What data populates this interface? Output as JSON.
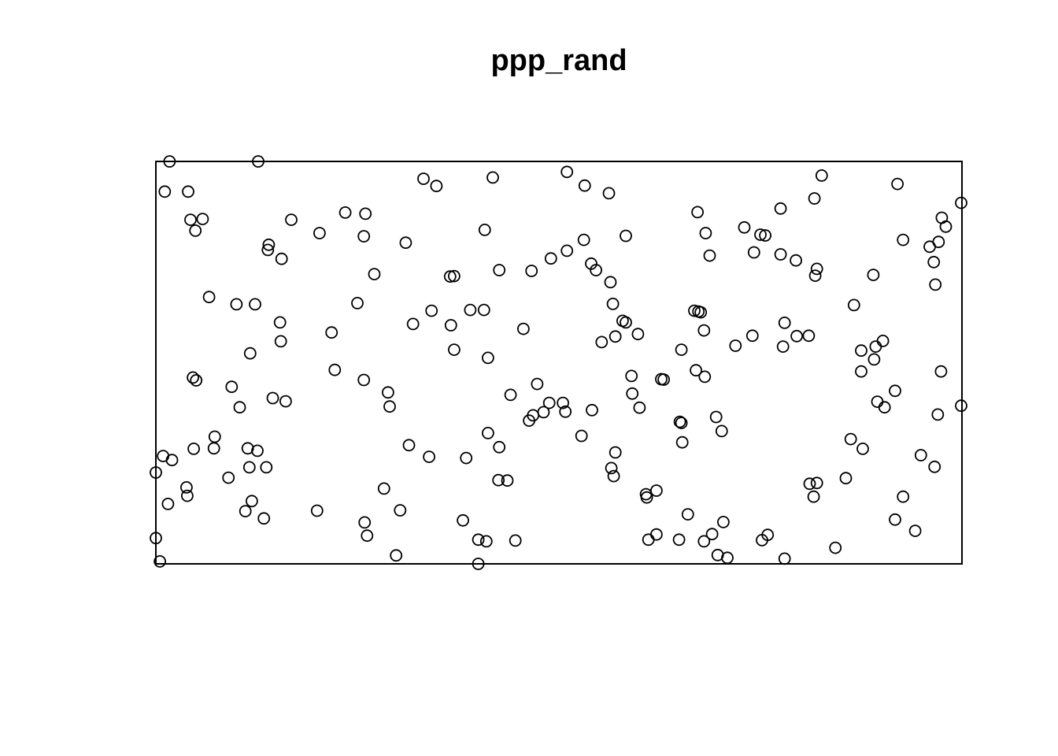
{
  "chart_data": {
    "type": "scatter",
    "title": "ppp_rand",
    "xlabel": "",
    "ylabel": "",
    "xlim": [
      0,
      1
    ],
    "ylim": [
      0,
      1
    ],
    "grid": false,
    "legend": "none",
    "marker": "open-circle",
    "points": [
      [
        0.017,
        1.0
      ],
      [
        0.127,
        1.0
      ],
      [
        0.011,
        0.925
      ],
      [
        0.04,
        0.925
      ],
      [
        0.043,
        0.855
      ],
      [
        0.058,
        0.857
      ],
      [
        0.049,
        0.828
      ],
      [
        0.066,
        0.663
      ],
      [
        0.1,
        0.645
      ],
      [
        0.123,
        0.645
      ],
      [
        0.14,
        0.793
      ],
      [
        0.139,
        0.78
      ],
      [
        0.156,
        0.758
      ],
      [
        0.168,
        0.855
      ],
      [
        0.203,
        0.822
      ],
      [
        0.235,
        0.873
      ],
      [
        0.26,
        0.87
      ],
      [
        0.258,
        0.814
      ],
      [
        0.31,
        0.798
      ],
      [
        0.271,
        0.72
      ],
      [
        0.25,
        0.648
      ],
      [
        0.154,
        0.6
      ],
      [
        0.155,
        0.553
      ],
      [
        0.117,
        0.523
      ],
      [
        0.218,
        0.575
      ],
      [
        0.046,
        0.463
      ],
      [
        0.05,
        0.456
      ],
      [
        0.094,
        0.44
      ],
      [
        0.104,
        0.389
      ],
      [
        0.145,
        0.412
      ],
      [
        0.161,
        0.404
      ],
      [
        0.222,
        0.482
      ],
      [
        0.258,
        0.457
      ],
      [
        0.288,
        0.426
      ],
      [
        0.29,
        0.391
      ],
      [
        0.073,
        0.316
      ],
      [
        0.072,
        0.287
      ],
      [
        0.047,
        0.286
      ],
      [
        0.009,
        0.268
      ],
      [
        0.02,
        0.258
      ],
      [
        0.0,
        0.227
      ],
      [
        0.114,
        0.287
      ],
      [
        0.126,
        0.281
      ],
      [
        0.116,
        0.24
      ],
      [
        0.137,
        0.24
      ],
      [
        0.09,
        0.214
      ],
      [
        0.038,
        0.19
      ],
      [
        0.039,
        0.169
      ],
      [
        0.015,
        0.149
      ],
      [
        0.119,
        0.156
      ],
      [
        0.111,
        0.131
      ],
      [
        0.134,
        0.113
      ],
      [
        0.2,
        0.132
      ],
      [
        0.259,
        0.103
      ],
      [
        0.262,
        0.07
      ],
      [
        0.303,
        0.133
      ],
      [
        0.283,
        0.187
      ],
      [
        0.298,
        0.021
      ],
      [
        0.0,
        0.064
      ],
      [
        0.005,
        0.006
      ],
      [
        0.332,
        0.957
      ],
      [
        0.348,
        0.939
      ],
      [
        0.418,
        0.96
      ],
      [
        0.408,
        0.83
      ],
      [
        0.426,
        0.73
      ],
      [
        0.37,
        0.715
      ],
      [
        0.365,
        0.714
      ],
      [
        0.319,
        0.596
      ],
      [
        0.342,
        0.629
      ],
      [
        0.366,
        0.593
      ],
      [
        0.39,
        0.631
      ],
      [
        0.37,
        0.532
      ],
      [
        0.407,
        0.631
      ],
      [
        0.412,
        0.512
      ],
      [
        0.456,
        0.584
      ],
      [
        0.466,
        0.728
      ],
      [
        0.49,
        0.759
      ],
      [
        0.51,
        0.778
      ],
      [
        0.51,
        0.974
      ],
      [
        0.532,
        0.94
      ],
      [
        0.562,
        0.921
      ],
      [
        0.531,
        0.805
      ],
      [
        0.546,
        0.73
      ],
      [
        0.564,
        0.7
      ],
      [
        0.567,
        0.646
      ],
      [
        0.57,
        0.565
      ],
      [
        0.579,
        0.604
      ],
      [
        0.553,
        0.551
      ],
      [
        0.54,
        0.746
      ],
      [
        0.583,
        0.815
      ],
      [
        0.44,
        0.42
      ],
      [
        0.463,
        0.356
      ],
      [
        0.473,
        0.447
      ],
      [
        0.468,
        0.369
      ],
      [
        0.488,
        0.4
      ],
      [
        0.481,
        0.377
      ],
      [
        0.412,
        0.325
      ],
      [
        0.426,
        0.29
      ],
      [
        0.314,
        0.295
      ],
      [
        0.339,
        0.266
      ],
      [
        0.385,
        0.263
      ],
      [
        0.425,
        0.208
      ],
      [
        0.436,
        0.207
      ],
      [
        0.505,
        0.4
      ],
      [
        0.508,
        0.378
      ],
      [
        0.528,
        0.318
      ],
      [
        0.541,
        0.382
      ],
      [
        0.57,
        0.277
      ],
      [
        0.565,
        0.238
      ],
      [
        0.568,
        0.218
      ],
      [
        0.583,
        0.6
      ],
      [
        0.598,
        0.571
      ],
      [
        0.59,
        0.467
      ],
      [
        0.591,
        0.423
      ],
      [
        0.6,
        0.388
      ],
      [
        0.63,
        0.458
      ],
      [
        0.627,
        0.459
      ],
      [
        0.65,
        0.353
      ],
      [
        0.652,
        0.35
      ],
      [
        0.653,
        0.302
      ],
      [
        0.681,
        0.465
      ],
      [
        0.67,
        0.481
      ],
      [
        0.68,
        0.58
      ],
      [
        0.673,
        0.627
      ],
      [
        0.668,
        0.629
      ],
      [
        0.676,
        0.625
      ],
      [
        0.687,
        0.766
      ],
      [
        0.682,
        0.822
      ],
      [
        0.672,
        0.874
      ],
      [
        0.73,
        0.836
      ],
      [
        0.75,
        0.818
      ],
      [
        0.756,
        0.816
      ],
      [
        0.742,
        0.774
      ],
      [
        0.775,
        0.769
      ],
      [
        0.775,
        0.883
      ],
      [
        0.826,
        0.965
      ],
      [
        0.817,
        0.908
      ],
      [
        0.794,
        0.754
      ],
      [
        0.818,
        0.716
      ],
      [
        0.82,
        0.733
      ],
      [
        0.74,
        0.567
      ],
      [
        0.719,
        0.542
      ],
      [
        0.78,
        0.599
      ],
      [
        0.778,
        0.54
      ],
      [
        0.795,
        0.566
      ],
      [
        0.81,
        0.567
      ],
      [
        0.695,
        0.365
      ],
      [
        0.702,
        0.33
      ],
      [
        0.652,
        0.532
      ],
      [
        0.92,
        0.944
      ],
      [
        0.971,
        0.8
      ],
      [
        0.96,
        0.788
      ],
      [
        0.927,
        0.805
      ],
      [
        0.89,
        0.718
      ],
      [
        0.965,
        0.75
      ],
      [
        0.967,
        0.694
      ],
      [
        0.975,
        0.86
      ],
      [
        0.999,
        0.897
      ],
      [
        0.98,
        0.838
      ],
      [
        0.866,
        0.643
      ],
      [
        0.875,
        0.53
      ],
      [
        0.893,
        0.54
      ],
      [
        0.891,
        0.508
      ],
      [
        0.875,
        0.478
      ],
      [
        0.902,
        0.554
      ],
      [
        0.895,
        0.403
      ],
      [
        0.904,
        0.389
      ],
      [
        0.917,
        0.43
      ],
      [
        0.974,
        0.478
      ],
      [
        0.97,
        0.371
      ],
      [
        0.999,
        0.393
      ],
      [
        0.816,
        0.167
      ],
      [
        0.811,
        0.199
      ],
      [
        0.82,
        0.201
      ],
      [
        0.862,
        0.31
      ],
      [
        0.877,
        0.286
      ],
      [
        0.856,
        0.213
      ],
      [
        0.949,
        0.27
      ],
      [
        0.966,
        0.241
      ],
      [
        0.927,
        0.167
      ],
      [
        0.917,
        0.11
      ],
      [
        0.942,
        0.082
      ],
      [
        0.609,
        0.165
      ],
      [
        0.621,
        0.182
      ],
      [
        0.66,
        0.123
      ],
      [
        0.704,
        0.104
      ],
      [
        0.709,
        0.015
      ],
      [
        0.759,
        0.072
      ],
      [
        0.752,
        0.059
      ],
      [
        0.78,
        0.013
      ],
      [
        0.69,
        0.074
      ],
      [
        0.68,
        0.056
      ],
      [
        0.649,
        0.06
      ],
      [
        0.697,
        0.022
      ],
      [
        0.621,
        0.073
      ],
      [
        0.608,
        0.173
      ],
      [
        0.41,
        0.056
      ],
      [
        0.381,
        0.108
      ],
      [
        0.446,
        0.058
      ],
      [
        0.4,
        0.06
      ],
      [
        0.4,
        0.0
      ],
      [
        0.843,
        0.04
      ],
      [
        0.611,
        0.06
      ]
    ]
  }
}
